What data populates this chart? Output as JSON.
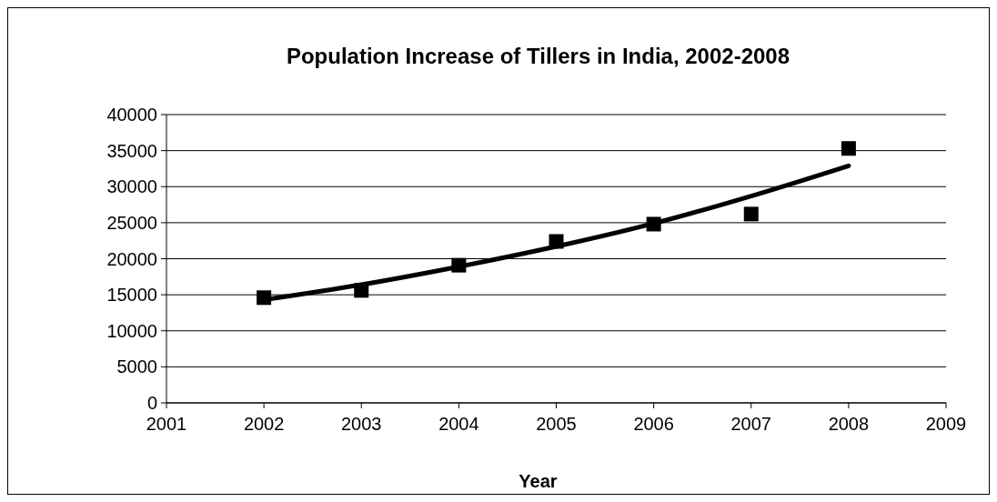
{
  "chart_data": {
    "type": "scatter",
    "title": "Population Increase of Tillers in India, 2002-2008",
    "xlabel": "Year",
    "marker": "square",
    "grid": "y",
    "xlim": [
      2001,
      2009
    ],
    "xticks": [
      2001,
      2002,
      2003,
      2004,
      2005,
      2006,
      2007,
      2008,
      2009
    ],
    "ylim": [
      0,
      40000
    ],
    "yticks": [
      0,
      5000,
      10000,
      15000,
      20000,
      25000,
      30000,
      35000,
      40000
    ],
    "series": [
      {
        "color": "#000000",
        "x": [
          2002,
          2003,
          2004,
          2005,
          2006,
          2007,
          2008
        ],
        "values": [
          14600,
          15600,
          19100,
          22400,
          24800,
          26200,
          35300
        ]
      },
      {
        "type": "line",
        "color": "#000000",
        "marker": "none",
        "x": [
          2002,
          2003,
          2004,
          2005,
          2006,
          2007,
          2008
        ],
        "values": [
          14300,
          16400,
          18900,
          21700,
          24900,
          28700,
          32900
        ]
      }
    ]
  }
}
